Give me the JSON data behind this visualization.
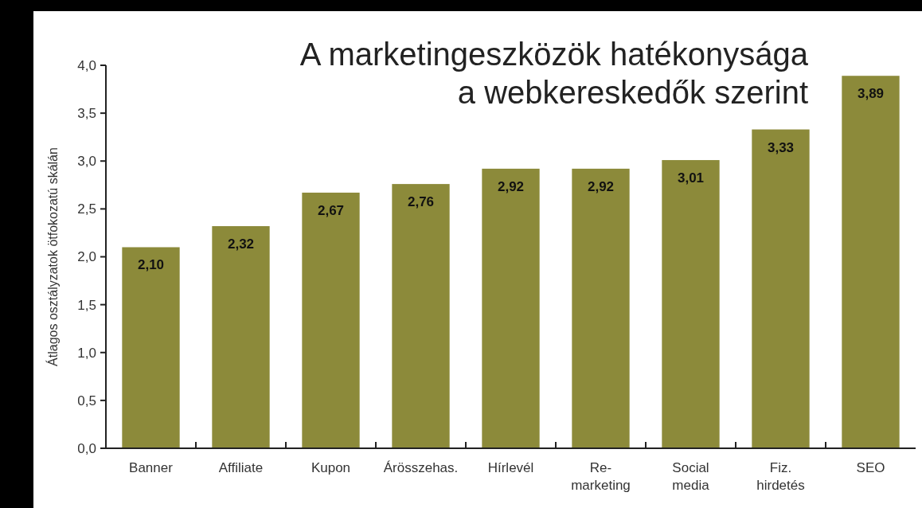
{
  "chart_data": {
    "type": "bar",
    "title": "A marketingeszközök hatékonysága\na webkereskedők szerint",
    "ylabel": "Átlagos osztályzatok ötfokozatú skálán",
    "categories": [
      "Banner",
      "Affiliate",
      "Kupon",
      "Árösszehas.",
      "Hírlevél",
      "Re-\nmarketing",
      "Social\nmedia",
      "Fiz.\nhirdetés",
      "SEO"
    ],
    "values": [
      2.1,
      2.32,
      2.67,
      2.76,
      2.92,
      2.92,
      3.01,
      3.33,
      3.89
    ],
    "value_labels": [
      "2,10",
      "2,32",
      "2,67",
      "2,76",
      "2,92",
      "2,92",
      "3,01",
      "3,33",
      "3,89"
    ],
    "color": "#8c8a3a",
    "ylim": [
      0,
      4
    ],
    "yticks": [
      {
        "value": 0,
        "label": "0,0"
      },
      {
        "value": 0.5,
        "label": "0,5"
      },
      {
        "value": 1,
        "label": "1,0"
      },
      {
        "value": 1.5,
        "label": "1,5"
      },
      {
        "value": 2,
        "label": "2,0"
      },
      {
        "value": 2.5,
        "label": "2,5"
      },
      {
        "value": 3,
        "label": "3,0"
      },
      {
        "value": 3.5,
        "label": "3,5"
      },
      {
        "value": 4,
        "label": "4,0"
      }
    ],
    "tick_labels": "xy"
  }
}
